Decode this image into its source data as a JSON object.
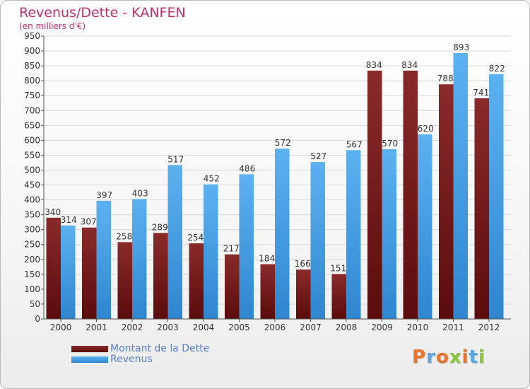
{
  "header": {
    "title": "Revenus/Dette - KANFEN",
    "subtitle": "(en milliers d'€)"
  },
  "logo": {
    "text": "Proxiti",
    "colors": [
      "#e9742b",
      "#5aa6e0",
      "#e9742b",
      "#8cc63f",
      "#e9742b",
      "#5aa6e0",
      "#8cc63f"
    ]
  },
  "chart_data": {
    "type": "bar",
    "title": "Revenus/Dette - KANFEN",
    "subtitle": "(en milliers d'€)",
    "categories": [
      "2000",
      "2001",
      "2002",
      "2003",
      "2004",
      "2005",
      "2006",
      "2007",
      "2008",
      "2009",
      "2010",
      "2011",
      "2012"
    ],
    "series": [
      {
        "name": "Montant de la Dette",
        "color": "#7a1a1a",
        "values": [
          340,
          307,
          258,
          289,
          254,
          217,
          184,
          166,
          151,
          834,
          834,
          788,
          741
        ],
        "labels": [
          "340",
          "307",
          "258",
          "289",
          "254",
          "217",
          "184",
          "166",
          "151",
          "834",
          "834",
          "788",
          "741"
        ]
      },
      {
        "name": "Revenus",
        "color": "#4aa3e8",
        "values": [
          314,
          397,
          403,
          517,
          452,
          486,
          572,
          527,
          567,
          570,
          620,
          893,
          822
        ],
        "labels": [
          "314",
          "397",
          "403",
          "517",
          "452",
          "486",
          "572",
          "527",
          "567",
          "570",
          "620",
          "893",
          "822"
        ]
      }
    ],
    "yticks": [
      "0",
      "50",
      "100",
      "150",
      "200",
      "250",
      "300",
      "350",
      "400",
      "450",
      "500",
      "550",
      "600",
      "650",
      "700",
      "750",
      "800",
      "850",
      "900",
      "950"
    ],
    "ylim": [
      0,
      950
    ],
    "grid": true,
    "legend_position": "bottom-left"
  }
}
